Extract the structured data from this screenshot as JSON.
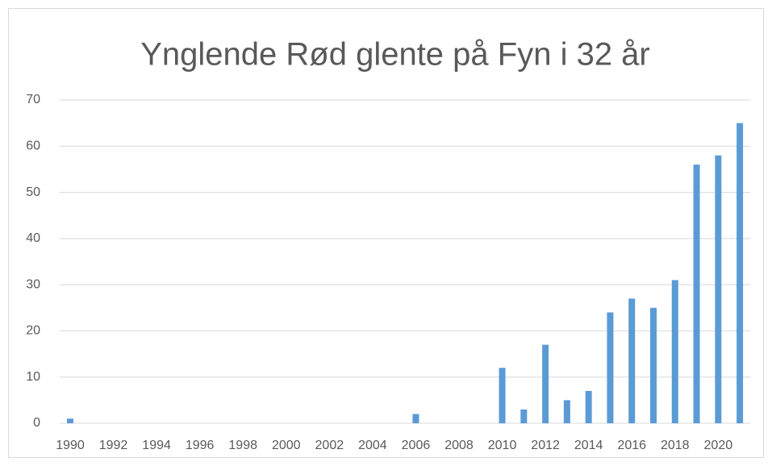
{
  "chart_data": {
    "type": "bar",
    "title": "Ynglende Rød glente på Fyn i 32 år",
    "categories": [
      "1990",
      null,
      "1992",
      null,
      "1994",
      null,
      "1996",
      null,
      "1998",
      null,
      "2000",
      null,
      "2002",
      null,
      "2004",
      null,
      "2006",
      null,
      "2008",
      null,
      "2010",
      null,
      "2012",
      null,
      "2014",
      null,
      "2016",
      null,
      "2018",
      null,
      "2020",
      null
    ],
    "values": [
      1,
      0,
      0,
      0,
      0,
      0,
      0,
      0,
      0,
      0,
      0,
      0,
      0,
      0,
      0,
      0,
      2,
      0,
      0,
      0,
      12,
      3,
      17,
      5,
      7,
      24,
      27,
      25,
      31,
      56,
      58,
      65
    ],
    "color": "#5b9bd5",
    "ylim": [
      0,
      70
    ],
    "yticks": [
      0,
      10,
      20,
      30,
      40,
      50,
      60,
      70
    ],
    "grid": true
  }
}
